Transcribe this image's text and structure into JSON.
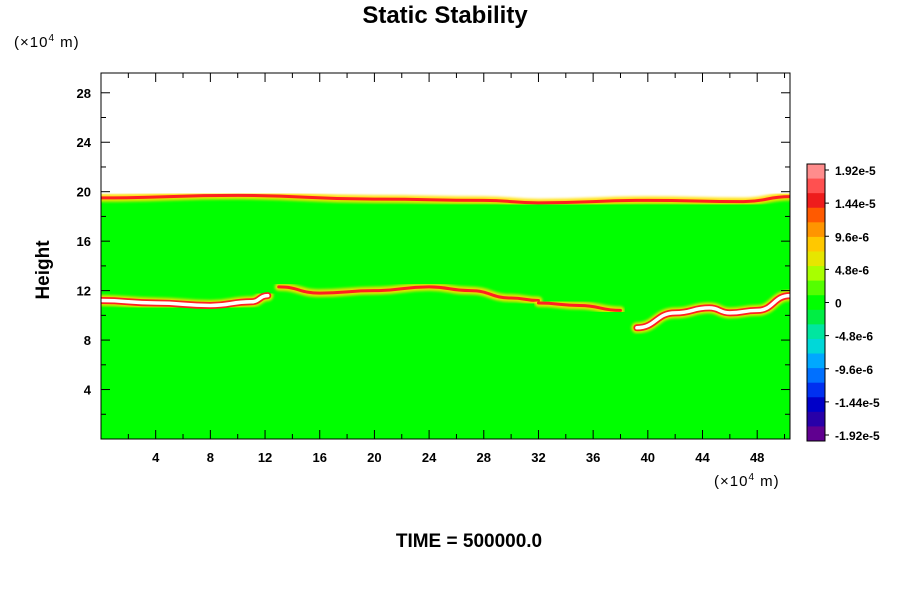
{
  "chart_data": {
    "type": "heatmap",
    "title": "Static Stability",
    "ylabel": "Height",
    "y_unit": {
      "base": "(×10",
      "exp": "4",
      "rest": " m)"
    },
    "x_unit": {
      "base": "(×10",
      "exp": "4",
      "rest": " m)"
    },
    "footer": "TIME = 500000.0",
    "xlim": [
      0,
      50.4
    ],
    "ylim": [
      0,
      29.6
    ],
    "xticks": [
      4,
      8,
      12,
      16,
      20,
      24,
      28,
      32,
      36,
      40,
      44,
      48
    ],
    "yticks": [
      4,
      8,
      12,
      16,
      20,
      24,
      28
    ],
    "data_top": 19.6,
    "colorbar": {
      "labels": [
        "1.92e-5",
        "1.44e-5",
        "9.6e-6",
        "4.8e-6",
        "0",
        "-4.8e-6",
        "-9.6e-6",
        "-1.44e-5",
        "-1.92e-5"
      ],
      "colors": [
        "#ff8c8c",
        "#ff5050",
        "#ee1c1c",
        "#ff5a00",
        "#ff9500",
        "#ffc800",
        "#e6e600",
        "#a8ff00",
        "#54ff00",
        "#00ff00",
        "#00ee44",
        "#00e6a0",
        "#00d8d8",
        "#00a8ff",
        "#0070ff",
        "#0030f0",
        "#0000c8",
        "#2800a8",
        "#600090"
      ]
    },
    "stable_layers": [
      {
        "name": "tropopause-layer",
        "points": [
          [
            0,
            11.2
          ],
          [
            4,
            11.0
          ],
          [
            8,
            10.8
          ],
          [
            11,
            11.1
          ],
          [
            12.2,
            11.6
          ]
        ],
        "color": "#ffffff",
        "strength": "max"
      },
      {
        "name": "upper-right-layer",
        "points": [
          [
            39.2,
            9.0
          ],
          [
            42,
            10.2
          ],
          [
            44.5,
            10.6
          ],
          [
            46,
            10.2
          ],
          [
            48,
            10.4
          ],
          [
            50.4,
            11.6
          ]
        ],
        "color": "#ffffff",
        "strength": "max"
      },
      {
        "name": "mid-stable-band-1",
        "points": [
          [
            13,
            12.3
          ],
          [
            16,
            11.8
          ],
          [
            20,
            12.0
          ],
          [
            24,
            12.3
          ],
          [
            27,
            12.0
          ],
          [
            30,
            11.4
          ],
          [
            32,
            11.2
          ]
        ],
        "color": "#ff2020",
        "strength": "high"
      },
      {
        "name": "mid-stable-band-2",
        "points": [
          [
            32,
            11.0
          ],
          [
            35,
            10.8
          ],
          [
            38,
            10.4
          ]
        ],
        "color": "#ff2020",
        "strength": "high"
      },
      {
        "name": "top-edge",
        "points": [
          [
            0,
            19.5
          ],
          [
            10,
            19.7
          ],
          [
            20,
            19.4
          ],
          [
            28,
            19.3
          ],
          [
            32,
            19.1
          ],
          [
            40,
            19.3
          ],
          [
            47,
            19.2
          ],
          [
            50.4,
            19.6
          ]
        ],
        "color": "#ff2020",
        "strength": "high"
      }
    ]
  }
}
